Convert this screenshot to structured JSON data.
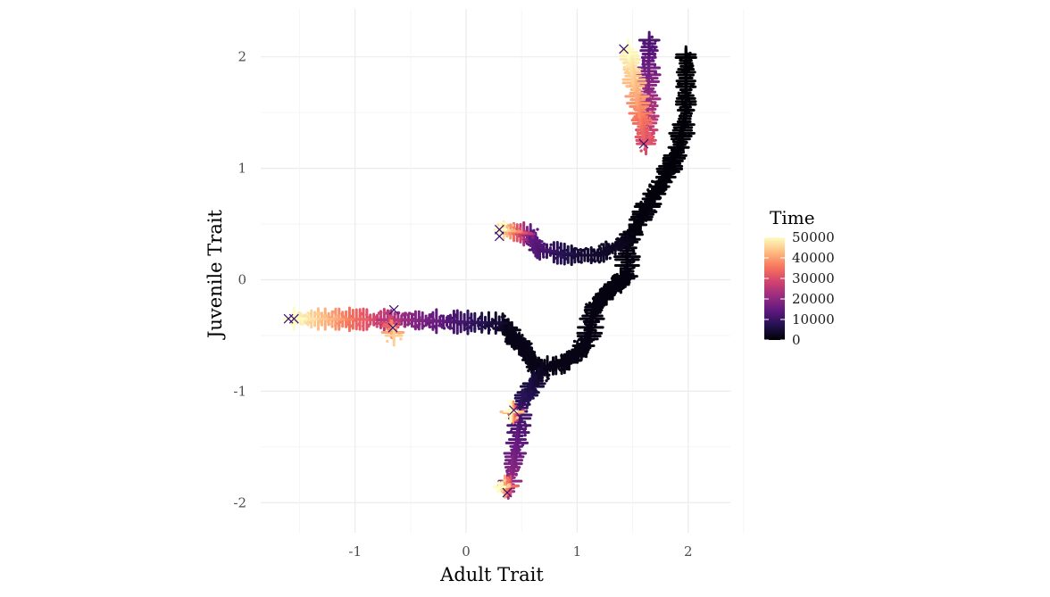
{
  "chart_data": {
    "type": "scatter",
    "title": "",
    "xlabel": "Adult Trait",
    "ylabel": "Juvenile Trait",
    "xlim": [
      -1.85,
      2.38
    ],
    "ylim": [
      -2.27,
      2.43
    ],
    "x_ticks": [
      -1,
      0,
      1,
      2
    ],
    "y_ticks": [
      -2,
      -1,
      0,
      1,
      2
    ],
    "x_tick_labels": [
      "-1",
      "0",
      "1",
      "2"
    ],
    "y_tick_labels": [
      "-2",
      "-1",
      "0",
      "1",
      "2"
    ],
    "grid": true,
    "color_scale": {
      "title": "Time",
      "palette": "magma",
      "min": 0,
      "max": 50000,
      "ticks": [
        0,
        10000,
        20000,
        30000,
        40000,
        50000
      ],
      "tick_labels": [
        "0",
        "10000",
        "20000",
        "30000",
        "40000",
        "50000"
      ],
      "stops": [
        "#000004",
        "#221150",
        "#5f187f",
        "#982d80",
        "#d3436e",
        "#f8765c",
        "#febb81",
        "#fcfdbf"
      ]
    },
    "legend_position": "right",
    "branches": [
      {
        "path": [
          [
            1.62,
            1.22
          ],
          [
            1.64,
            1.6
          ],
          [
            1.65,
            2.15
          ]
        ],
        "t": [
          30000,
          12000
        ]
      },
      {
        "path": [
          [
            1.62,
            1.22
          ],
          [
            1.46,
            2.07
          ]
        ],
        "t": [
          30000,
          50000
        ]
      },
      {
        "path": [
          [
            0.95,
            0.22
          ],
          [
            0.65,
            0.27
          ],
          [
            0.58,
            0.4
          ]
        ],
        "t": [
          5000,
          15000
        ]
      },
      {
        "path": [
          [
            0.58,
            0.4
          ],
          [
            0.31,
            0.45
          ]
        ],
        "t": [
          15000,
          50000
        ]
      },
      {
        "path": [
          [
            0.33,
            -0.39
          ],
          [
            -0.05,
            -0.38
          ],
          [
            -0.55,
            -0.36
          ]
        ],
        "t": [
          3000,
          20000
        ]
      },
      {
        "path": [
          [
            -0.55,
            -0.36
          ],
          [
            -1.55,
            -0.35
          ]
        ],
        "t": [
          20000,
          50000
        ]
      },
      {
        "path": [
          [
            -0.7,
            -0.36
          ],
          [
            -0.65,
            -0.5
          ]
        ],
        "t": [
          25000,
          45000
        ]
      },
      {
        "path": [
          [
            0.7,
            -0.8
          ],
          [
            0.5,
            -1.1
          ],
          [
            0.46,
            -1.45
          ],
          [
            0.38,
            -1.9
          ]
        ],
        "t": [
          2000,
          22000
        ]
      },
      {
        "path": [
          [
            0.45,
            -1.2
          ],
          [
            0.4,
            -1.18
          ]
        ],
        "t": [
          25000,
          50000
        ]
      },
      {
        "path": [
          [
            0.4,
            -1.85
          ],
          [
            0.3,
            -1.86
          ]
        ],
        "t": [
          30000,
          50000
        ]
      }
    ],
    "start_path": [
      [
        1.98,
        2.02
      ],
      [
        1.98,
        1.5
      ],
      [
        1.92,
        1.2
      ],
      [
        1.8,
        0.92
      ],
      [
        1.68,
        0.75
      ],
      [
        1.55,
        0.5
      ],
      [
        1.45,
        0.35
      ],
      [
        1.45,
        0.05
      ],
      [
        1.15,
        -0.25
      ],
      [
        1.1,
        -0.55
      ],
      [
        0.9,
        -0.75
      ],
      [
        0.65,
        -0.8
      ],
      [
        0.5,
        -0.6
      ],
      [
        0.33,
        -0.39
      ]
    ],
    "start_branch_to_mid": [
      [
        1.45,
        0.35
      ],
      [
        1.2,
        0.22
      ],
      [
        0.95,
        0.22
      ]
    ],
    "markers": [
      {
        "x": 1.42,
        "y": 2.07
      },
      {
        "x": 1.6,
        "y": 1.22
      },
      {
        "x": 0.3,
        "y": 0.45
      },
      {
        "x": 0.3,
        "y": 0.39
      },
      {
        "x": -1.6,
        "y": -0.35
      },
      {
        "x": -1.55,
        "y": -0.35
      },
      {
        "x": -0.65,
        "y": -0.27
      },
      {
        "x": -0.66,
        "y": -0.43
      },
      {
        "x": 0.43,
        "y": -1.17
      },
      {
        "x": 0.37,
        "y": -1.91
      }
    ]
  }
}
